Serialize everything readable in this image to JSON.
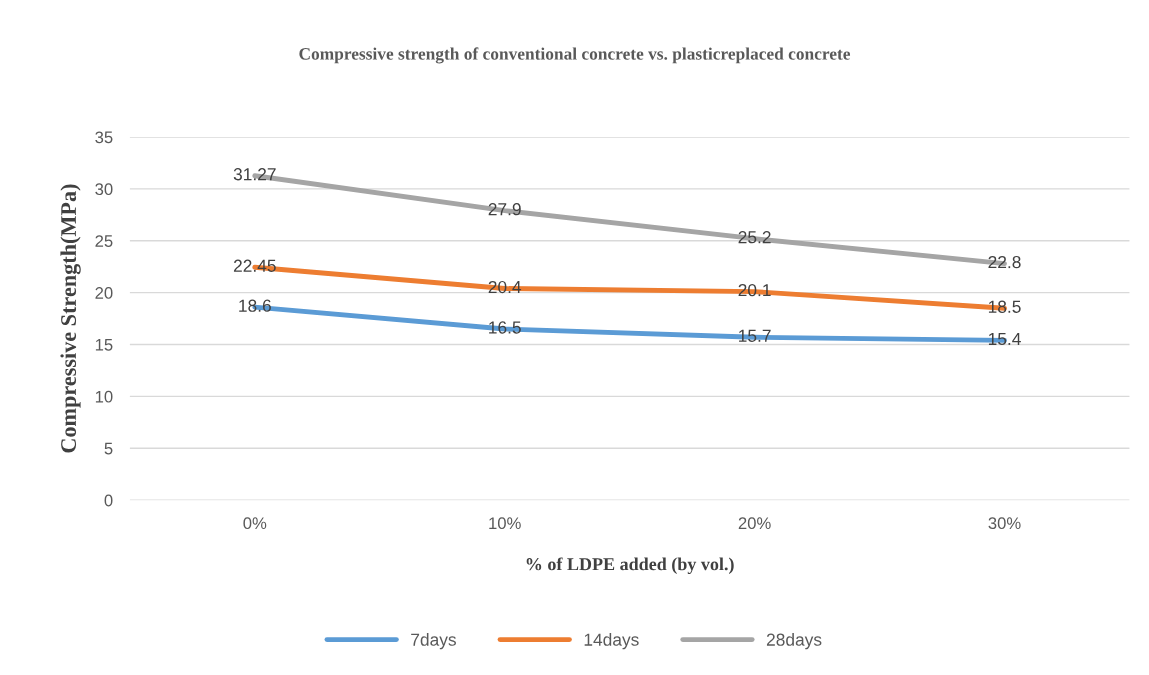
{
  "chart_data": {
    "type": "line",
    "title": "Compressive strength of conventional concrete vs. plasticreplaced concrete",
    "xlabel": "% of LDPE added (by vol.)",
    "ylabel": "Compressive Strength(MPa)",
    "categories": [
      "0%",
      "10%",
      "20%",
      "30%"
    ],
    "series": [
      {
        "name": "7days",
        "color": "#5b9bd5",
        "values": [
          18.6,
          16.5,
          15.7,
          15.4
        ]
      },
      {
        "name": "14days",
        "color": "#ed7d31",
        "values": [
          22.45,
          20.4,
          20.1,
          18.5
        ]
      },
      {
        "name": "28days",
        "color": "#a5a5a5",
        "values": [
          31.27,
          27.9,
          25.2,
          22.8
        ]
      }
    ],
    "ylim": [
      0,
      35
    ],
    "yticks": [
      0,
      5,
      10,
      15,
      20,
      25,
      30,
      35
    ],
    "grid": "y",
    "legend": "bottom",
    "data_labels": true,
    "marker": "none",
    "line_style": "solid"
  }
}
